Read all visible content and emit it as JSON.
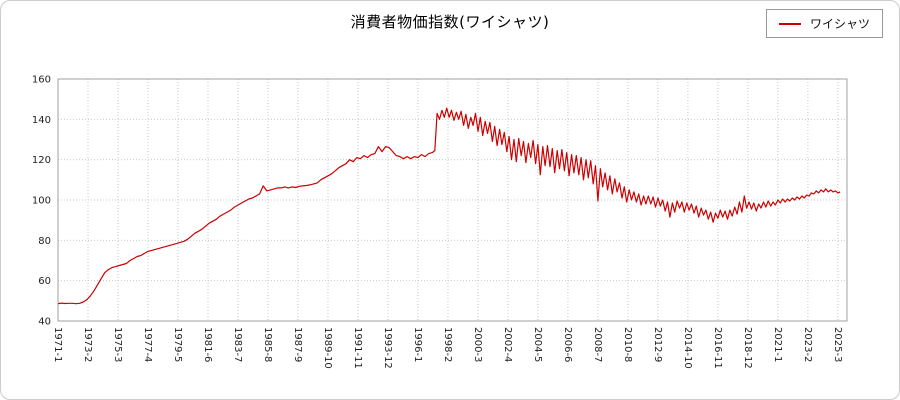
{
  "title": "消費者物価指数(ワイシャツ)",
  "legend": {
    "label": "ワイシャツ",
    "line_color": "#cc0000"
  },
  "colors": {
    "line": "#cc0000",
    "grid": "#c9c9c9",
    "axis_border": "#a0a0a0",
    "tick_text": "#222222",
    "background": "#ffffff"
  },
  "chart_data": {
    "type": "line",
    "title": "消費者物価指数(ワイシャツ)",
    "xlabel": "",
    "ylabel": "",
    "grid": true,
    "legend_position": "top-right",
    "ylim": [
      40,
      160
    ],
    "xlim": [
      1971,
      2025.8
    ],
    "y_ticks": [
      40,
      60,
      80,
      100,
      120,
      140,
      160
    ],
    "x_tick_labels": [
      "1971-1",
      "1973-2",
      "1975-3",
      "1977-4",
      "1979-5",
      "1981-6",
      "1983-7",
      "1985-8",
      "1987-9",
      "1989-10",
      "1991-11",
      "1993-12",
      "1996-1",
      "1998-2",
      "2000-3",
      "2002-4",
      "2004-5",
      "2006-6",
      "2008-7",
      "2010-8",
      "2012-9",
      "2014-10",
      "2016-11",
      "2018-12",
      "2021-1",
      "2023-2",
      "2025-3"
    ],
    "series": [
      {
        "name": "ワイシャツ",
        "color": "#cc0000",
        "points": [
          [
            1971,
            48.6
          ],
          [
            1971.25,
            48.9
          ],
          [
            1971.5,
            48.7
          ],
          [
            1971.75,
            48.8
          ],
          [
            1972,
            48.8
          ],
          [
            1972.25,
            48.6
          ],
          [
            1972.5,
            48.8
          ],
          [
            1972.75,
            49.4
          ],
          [
            1973,
            50.5
          ],
          [
            1973.25,
            52.5
          ],
          [
            1973.5,
            55
          ],
          [
            1973.75,
            58
          ],
          [
            1974,
            61
          ],
          [
            1974.25,
            64
          ],
          [
            1974.5,
            65.5
          ],
          [
            1974.75,
            66.5
          ],
          [
            1975,
            67
          ],
          [
            1975.25,
            67.5
          ],
          [
            1975.5,
            68
          ],
          [
            1975.75,
            68.5
          ],
          [
            1976,
            70
          ],
          [
            1976.25,
            71
          ],
          [
            1976.5,
            72
          ],
          [
            1976.75,
            72.5
          ],
          [
            1977,
            73.5
          ],
          [
            1977.25,
            74.5
          ],
          [
            1977.5,
            75
          ],
          [
            1977.75,
            75.5
          ],
          [
            1978,
            76
          ],
          [
            1978.25,
            76.5
          ],
          [
            1978.5,
            77
          ],
          [
            1978.75,
            77.5
          ],
          [
            1979,
            78
          ],
          [
            1979.25,
            78.5
          ],
          [
            1979.5,
            79
          ],
          [
            1979.75,
            79.5
          ],
          [
            1980,
            80.5
          ],
          [
            1980.25,
            82
          ],
          [
            1980.5,
            83.5
          ],
          [
            1980.75,
            84.5
          ],
          [
            1981,
            85.5
          ],
          [
            1981.25,
            87
          ],
          [
            1981.5,
            88.5
          ],
          [
            1981.75,
            89.5
          ],
          [
            1982,
            90.5
          ],
          [
            1982.25,
            92
          ],
          [
            1982.5,
            93
          ],
          [
            1982.75,
            94
          ],
          [
            1983,
            95
          ],
          [
            1983.25,
            96.5
          ],
          [
            1983.5,
            97.5
          ],
          [
            1983.75,
            98.5
          ],
          [
            1984,
            99.5
          ],
          [
            1984.25,
            100.5
          ],
          [
            1984.5,
            101
          ],
          [
            1984.75,
            102
          ],
          [
            1985,
            103
          ],
          [
            1985.25,
            107
          ],
          [
            1985.5,
            104.5
          ],
          [
            1985.75,
            105
          ],
          [
            1986,
            105.5
          ],
          [
            1986.25,
            106
          ],
          [
            1986.5,
            106
          ],
          [
            1986.75,
            106.5
          ],
          [
            1987,
            106
          ],
          [
            1987.25,
            106.5
          ],
          [
            1987.5,
            106.2
          ],
          [
            1987.75,
            106.8
          ],
          [
            1988,
            107
          ],
          [
            1988.25,
            107.2
          ],
          [
            1988.5,
            107.5
          ],
          [
            1988.75,
            108
          ],
          [
            1989,
            108.5
          ],
          [
            1989.25,
            110
          ],
          [
            1989.5,
            111
          ],
          [
            1989.75,
            112
          ],
          [
            1990,
            113
          ],
          [
            1990.25,
            114.5
          ],
          [
            1990.5,
            116
          ],
          [
            1990.75,
            117
          ],
          [
            1991,
            118
          ],
          [
            1991.25,
            120
          ],
          [
            1991.5,
            119
          ],
          [
            1991.75,
            121
          ],
          [
            1992,
            120.5
          ],
          [
            1992.25,
            122
          ],
          [
            1992.5,
            121
          ],
          [
            1992.75,
            122.5
          ],
          [
            1993,
            123
          ],
          [
            1993.25,
            126.5
          ],
          [
            1993.5,
            124
          ],
          [
            1993.75,
            126.5
          ],
          [
            1994,
            126
          ],
          [
            1994.25,
            124
          ],
          [
            1994.5,
            122
          ],
          [
            1994.75,
            121.5
          ],
          [
            1995,
            120.5
          ],
          [
            1995.25,
            121.5
          ],
          [
            1995.5,
            120.5
          ],
          [
            1995.75,
            121.5
          ],
          [
            1996,
            121
          ],
          [
            1996.25,
            122.5
          ],
          [
            1996.5,
            121.5
          ],
          [
            1996.75,
            123
          ],
          [
            1997,
            123.5
          ],
          [
            1997.17,
            124.5
          ],
          [
            1997.33,
            143
          ],
          [
            1997.5,
            140
          ],
          [
            1997.67,
            144.5
          ],
          [
            1997.83,
            141
          ],
          [
            1998,
            145.5
          ],
          [
            1998.17,
            141
          ],
          [
            1998.33,
            144.5
          ],
          [
            1998.5,
            139.5
          ],
          [
            1998.67,
            143.5
          ],
          [
            1998.83,
            140
          ],
          [
            1999,
            144
          ],
          [
            1999.17,
            137
          ],
          [
            1999.33,
            142.5
          ],
          [
            1999.5,
            135.5
          ],
          [
            1999.67,
            141
          ],
          [
            1999.83,
            137
          ],
          [
            2000,
            143
          ],
          [
            2000.17,
            134
          ],
          [
            2000.33,
            141
          ],
          [
            2000.5,
            132
          ],
          [
            2000.67,
            139
          ],
          [
            2000.83,
            133
          ],
          [
            2001,
            138.5
          ],
          [
            2001.17,
            129
          ],
          [
            2001.33,
            136.5
          ],
          [
            2001.5,
            127
          ],
          [
            2001.67,
            135
          ],
          [
            2001.83,
            127.5
          ],
          [
            2002,
            133.5
          ],
          [
            2002.17,
            124
          ],
          [
            2002.33,
            131.5
          ],
          [
            2002.5,
            120
          ],
          [
            2002.67,
            130
          ],
          [
            2002.83,
            119
          ],
          [
            2003,
            130.5
          ],
          [
            2003.17,
            122
          ],
          [
            2003.33,
            129
          ],
          [
            2003.5,
            118.5
          ],
          [
            2003.67,
            128
          ],
          [
            2003.83,
            121
          ],
          [
            2004,
            129.5
          ],
          [
            2004.17,
            118
          ],
          [
            2004.33,
            127.5
          ],
          [
            2004.5,
            112.5
          ],
          [
            2004.67,
            126.5
          ],
          [
            2004.83,
            117
          ],
          [
            2005,
            127
          ],
          [
            2005.17,
            116.5
          ],
          [
            2005.33,
            125.5
          ],
          [
            2005.5,
            113.5
          ],
          [
            2005.67,
            124.5
          ],
          [
            2005.83,
            115.5
          ],
          [
            2006,
            125
          ],
          [
            2006.17,
            114.5
          ],
          [
            2006.33,
            123.5
          ],
          [
            2006.5,
            112
          ],
          [
            2006.67,
            122.5
          ],
          [
            2006.83,
            113.5
          ],
          [
            2007,
            122
          ],
          [
            2007.17,
            112.5
          ],
          [
            2007.33,
            121
          ],
          [
            2007.5,
            110
          ],
          [
            2007.67,
            120
          ],
          [
            2007.83,
            111
          ],
          [
            2008,
            119.5
          ],
          [
            2008.17,
            108
          ],
          [
            2008.33,
            117
          ],
          [
            2008.5,
            99.5
          ],
          [
            2008.67,
            115.5
          ],
          [
            2008.83,
            106.5
          ],
          [
            2009,
            113.5
          ],
          [
            2009.17,
            105
          ],
          [
            2009.33,
            112
          ],
          [
            2009.5,
            103
          ],
          [
            2009.67,
            110.5
          ],
          [
            2009.83,
            104
          ],
          [
            2010,
            108.5
          ],
          [
            2010.17,
            101
          ],
          [
            2010.33,
            106.5
          ],
          [
            2010.5,
            99
          ],
          [
            2010.67,
            105
          ],
          [
            2010.83,
            100
          ],
          [
            2011,
            104
          ],
          [
            2011.17,
            99
          ],
          [
            2011.33,
            103
          ],
          [
            2011.5,
            97.5
          ],
          [
            2011.67,
            102
          ],
          [
            2011.83,
            98
          ],
          [
            2012,
            102
          ],
          [
            2012.17,
            98
          ],
          [
            2012.33,
            101.5
          ],
          [
            2012.5,
            96.5
          ],
          [
            2012.67,
            101
          ],
          [
            2012.83,
            97
          ],
          [
            2013,
            100
          ],
          [
            2013.17,
            94.5
          ],
          [
            2013.33,
            99
          ],
          [
            2013.5,
            91.5
          ],
          [
            2013.67,
            98.5
          ],
          [
            2013.83,
            94
          ],
          [
            2014,
            99.5
          ],
          [
            2014.17,
            96
          ],
          [
            2014.33,
            99
          ],
          [
            2014.5,
            94
          ],
          [
            2014.67,
            98.5
          ],
          [
            2014.83,
            95
          ],
          [
            2015,
            98
          ],
          [
            2015.17,
            93.5
          ],
          [
            2015.33,
            97
          ],
          [
            2015.5,
            91.5
          ],
          [
            2015.67,
            96
          ],
          [
            2015.83,
            92.5
          ],
          [
            2016,
            95
          ],
          [
            2016.17,
            90.5
          ],
          [
            2016.33,
            94
          ],
          [
            2016.5,
            89
          ],
          [
            2016.67,
            93.5
          ],
          [
            2016.83,
            91
          ],
          [
            2017,
            95
          ],
          [
            2017.17,
            91.5
          ],
          [
            2017.33,
            94.5
          ],
          [
            2017.5,
            90.5
          ],
          [
            2017.67,
            95
          ],
          [
            2017.83,
            92
          ],
          [
            2018,
            96.5
          ],
          [
            2018.17,
            93
          ],
          [
            2018.33,
            99
          ],
          [
            2018.5,
            94
          ],
          [
            2018.67,
            102
          ],
          [
            2018.83,
            96
          ],
          [
            2019,
            99
          ],
          [
            2019.17,
            95.5
          ],
          [
            2019.33,
            98.5
          ],
          [
            2019.5,
            94.5
          ],
          [
            2019.67,
            98
          ],
          [
            2019.83,
            96
          ],
          [
            2020,
            99
          ],
          [
            2020.17,
            96.5
          ],
          [
            2020.33,
            99.5
          ],
          [
            2020.5,
            97
          ],
          [
            2020.67,
            99
          ],
          [
            2020.83,
            97.5
          ],
          [
            2021,
            100
          ],
          [
            2021.17,
            98.5
          ],
          [
            2021.33,
            100.5
          ],
          [
            2021.5,
            99
          ],
          [
            2021.67,
            100.5
          ],
          [
            2021.83,
            99.5
          ],
          [
            2022,
            101
          ],
          [
            2022.17,
            100
          ],
          [
            2022.33,
            101.5
          ],
          [
            2022.5,
            100.5
          ],
          [
            2022.67,
            102
          ],
          [
            2022.83,
            101
          ],
          [
            2023,
            102.5
          ],
          [
            2023.17,
            102
          ],
          [
            2023.33,
            103.5
          ],
          [
            2023.5,
            103
          ],
          [
            2023.67,
            104.5
          ],
          [
            2023.83,
            103.5
          ],
          [
            2024,
            105
          ],
          [
            2024.17,
            104
          ],
          [
            2024.33,
            105.5
          ],
          [
            2024.5,
            104
          ],
          [
            2024.67,
            105
          ],
          [
            2024.83,
            104
          ],
          [
            2025,
            104.5
          ],
          [
            2025.17,
            103.5
          ],
          [
            2025.33,
            104
          ]
        ]
      }
    ]
  }
}
